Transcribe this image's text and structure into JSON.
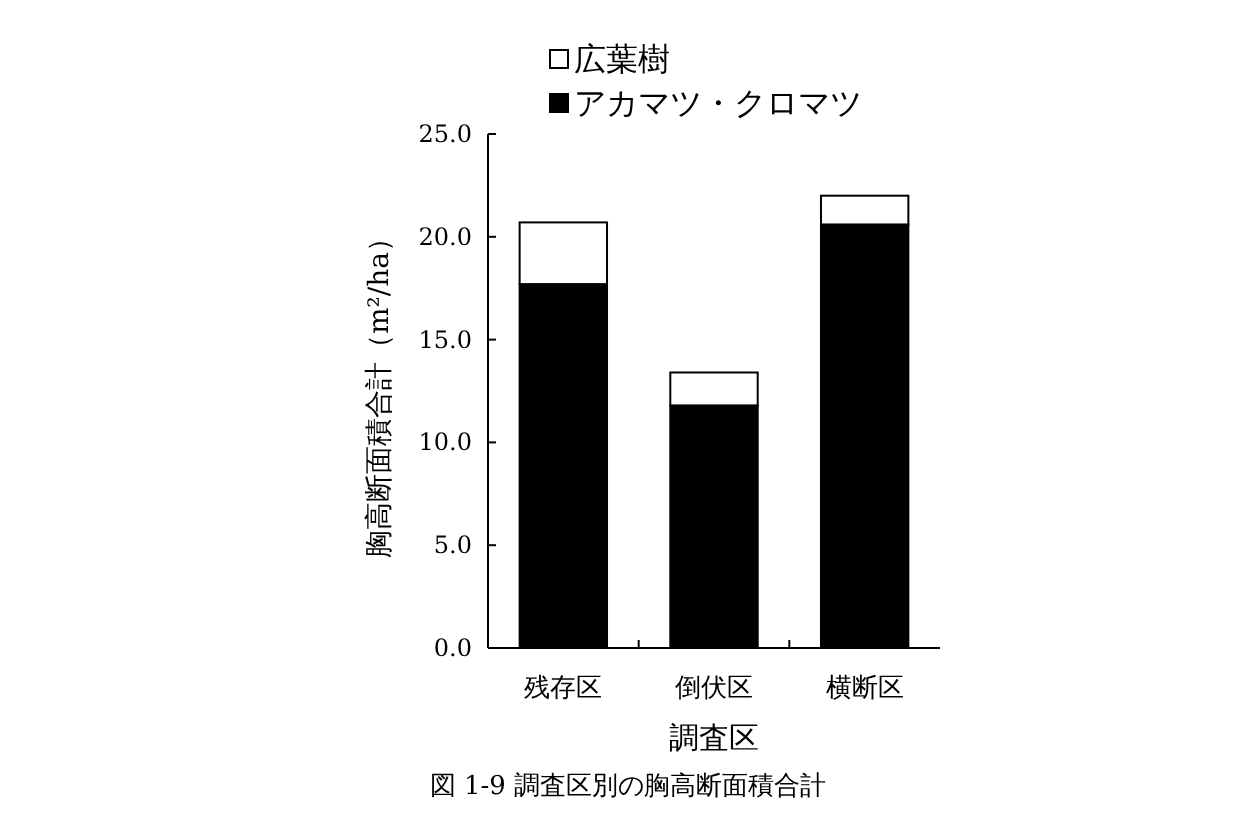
{
  "chart_data": {
    "type": "bar",
    "stacked": true,
    "xlabel": "調査区",
    "ylabel": "胸高断面積合計（m²/ha）",
    "categories": [
      "残存区",
      "倒伏区",
      "横断区"
    ],
    "series": [
      {
        "name": "アカマツ・クロマツ",
        "color": "#000000",
        "values": [
          17.7,
          11.8,
          20.6
        ]
      },
      {
        "name": "広葉樹",
        "color": "#ffffff",
        "values": [
          3.0,
          1.6,
          1.4
        ]
      }
    ],
    "ylim": [
      0,
      25
    ],
    "yticks": [
      {
        "value": 0,
        "label": "0.0"
      },
      {
        "value": 5,
        "label": "5.0"
      },
      {
        "value": 10,
        "label": "10.0"
      },
      {
        "value": 15,
        "label": "15.0"
      },
      {
        "value": 20,
        "label": "20.0"
      },
      {
        "value": 25,
        "label": "25.0"
      }
    ],
    "grid": false,
    "legend": "top",
    "annotations": [
      "図 1-9 調査区別の胸高断面積合計"
    ]
  }
}
